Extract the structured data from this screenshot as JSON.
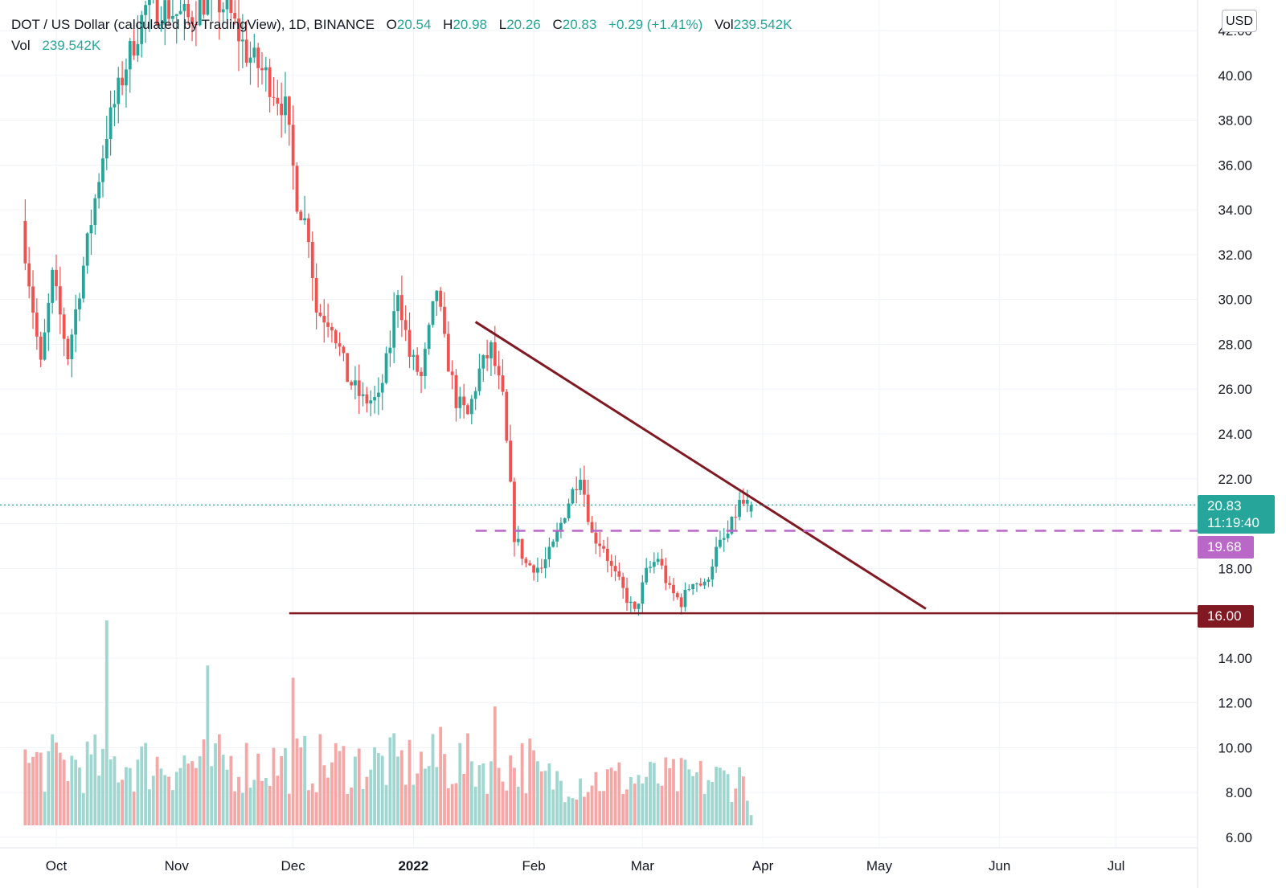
{
  "legend": {
    "symbol": "DOT / US Dollar (calculated by TradingView), 1D, BINANCE",
    "o_label": "O",
    "o_value": "20.54",
    "h_label": "H",
    "h_value": "20.98",
    "l_label": "L",
    "l_value": "20.26",
    "c_label": "C",
    "c_value": "20.83",
    "change": "+0.29 (+1.41%)",
    "vol_label": "Vol",
    "vol_value": "239.542K",
    "vol_row_label": "Vol",
    "vol_row_value": "239.542K"
  },
  "currency_button": "USD",
  "price_tags": {
    "last_price": "20.83",
    "countdown": "11:19:40",
    "dashed_level": "19.68",
    "support_level": "16.00"
  },
  "colors": {
    "up": "#26a69a",
    "down": "#ef5350",
    "vol_up": "#9fd6cf",
    "vol_down": "#f5a7a5",
    "trendline": "#801922",
    "dashed": "#ba68c8",
    "grid": "#f0f3fa",
    "axis_text": "#131722"
  },
  "chart_data": {
    "type": "candlestick",
    "title": "DOT / US Dollar (calculated by TradingView), 1D, BINANCE",
    "y_axis": {
      "ylim": [
        5.6,
        43.1
      ],
      "ticks": [
        "6.00",
        "8.00",
        "10.00",
        "12.00",
        "14.00",
        "16.00",
        "18.00",
        "20.00",
        "22.00",
        "24.00",
        "26.00",
        "28.00",
        "30.00",
        "32.00",
        "34.00",
        "36.00",
        "38.00",
        "40.00",
        "42.00"
      ]
    },
    "x_axis": {
      "ticks": [
        "Oct",
        "Nov",
        "Dec",
        "2022",
        "Feb",
        "Mar",
        "Apr",
        "May",
        "Jun",
        "Jul"
      ]
    },
    "grid": true,
    "anchors": [
      [
        "2021-09-23",
        33.5
      ],
      [
        "2021-09-28",
        27.0
      ],
      [
        "2021-10-01",
        31.0
      ],
      [
        "2021-10-05",
        27.5
      ],
      [
        "2021-10-10",
        32.5
      ],
      [
        "2021-10-15",
        37.5
      ],
      [
        "2021-10-20",
        40.5
      ],
      [
        "2021-10-25",
        43.0
      ],
      [
        "2021-10-30",
        43.0
      ],
      [
        "2021-11-05",
        42.5
      ],
      [
        "2021-11-10",
        43.5
      ],
      [
        "2021-11-15",
        43.0
      ],
      [
        "2021-11-20",
        41.0
      ],
      [
        "2021-11-25",
        40.0
      ],
      [
        "2021-11-30",
        38.5
      ],
      [
        "2021-12-03",
        34.5
      ],
      [
        "2021-12-06",
        33.0
      ],
      [
        "2021-12-08",
        29.5
      ],
      [
        "2021-12-12",
        29.0
      ],
      [
        "2021-12-16",
        26.5
      ],
      [
        "2021-12-20",
        25.5
      ],
      [
        "2021-12-24",
        25.5
      ],
      [
        "2021-12-27",
        28.0
      ],
      [
        "2021-12-29",
        30.5
      ],
      [
        "2022-01-01",
        27.5
      ],
      [
        "2022-01-04",
        26.5
      ],
      [
        "2022-01-08",
        30.5
      ],
      [
        "2022-01-10",
        28.0
      ],
      [
        "2022-01-13",
        25.5
      ],
      [
        "2022-01-16",
        24.8
      ],
      [
        "2022-01-19",
        26.8
      ],
      [
        "2022-01-22",
        27.8
      ],
      [
        "2022-01-25",
        25.5
      ],
      [
        "2022-01-28",
        19.5
      ],
      [
        "2022-01-31",
        18.2
      ],
      [
        "2022-02-04",
        18.0
      ],
      [
        "2022-02-07",
        19.0
      ],
      [
        "2022-02-11",
        21.0
      ],
      [
        "2022-02-14",
        22.3
      ],
      [
        "2022-02-17",
        19.5
      ],
      [
        "2022-02-20",
        19.0
      ],
      [
        "2022-02-22",
        18.0
      ],
      [
        "2022-02-25",
        17.0
      ],
      [
        "2022-02-28",
        16.0
      ],
      [
        "2022-03-03",
        17.8
      ],
      [
        "2022-03-06",
        18.5
      ],
      [
        "2022-03-09",
        17.0
      ],
      [
        "2022-03-12",
        16.5
      ],
      [
        "2022-03-15",
        17.5
      ],
      [
        "2022-03-18",
        17.2
      ],
      [
        "2022-03-21",
        18.8
      ],
      [
        "2022-03-24",
        19.5
      ],
      [
        "2022-03-27",
        20.9
      ],
      [
        "2022-03-29",
        20.83
      ]
    ],
    "series": [
      {
        "type": "trendline",
        "from": [
          "2022-01-17",
          29.0
        ],
        "to": [
          "2022-05-13",
          16.2
        ]
      },
      {
        "type": "horizontal_line",
        "from_date": "2021-11-30",
        "to_date": "2022-07-31",
        "y": 16.0
      },
      {
        "type": "dashed_horizontal_line",
        "from_date": "2022-01-17",
        "to_date": "2022-07-31",
        "y": 19.68
      },
      {
        "type": "last_price_line",
        "y": 20.83
      }
    ],
    "volume": {
      "ylim_relative": "bottom pane overlay",
      "spikes": [
        [
          "2021-10-14",
          1.0
        ],
        [
          "2021-11-09",
          0.78
        ],
        [
          "2021-12-01",
          0.72
        ],
        [
          "2022-01-22",
          0.58
        ],
        [
          "2022-01-08",
          0.48
        ]
      ]
    }
  }
}
